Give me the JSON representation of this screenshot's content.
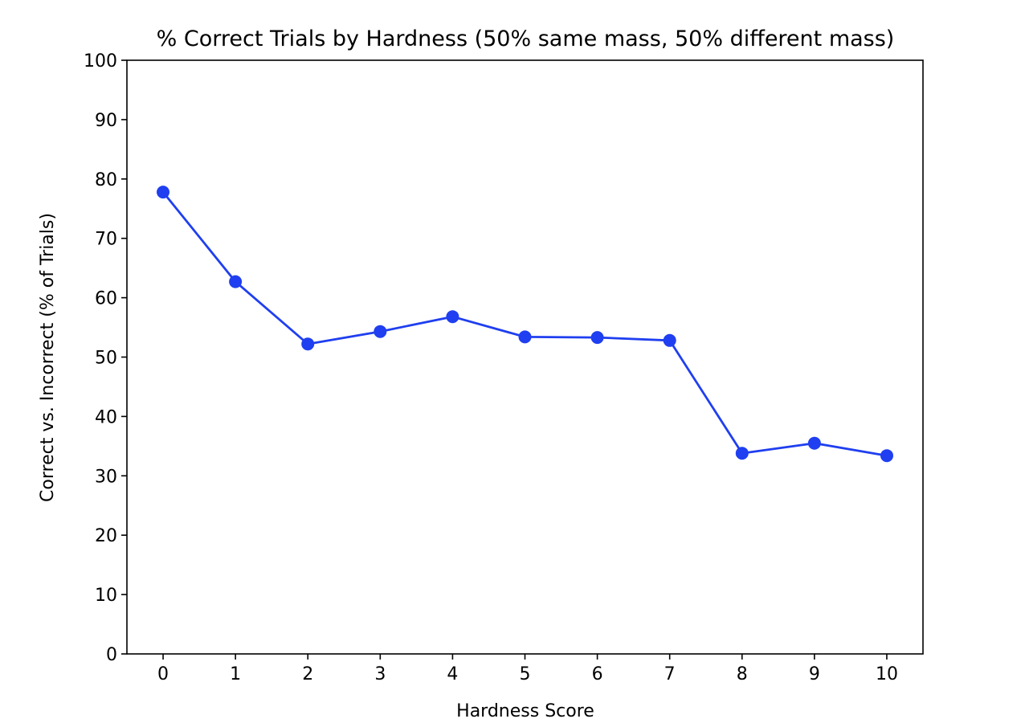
{
  "chart_data": {
    "type": "line",
    "title": "% Correct Trials by Hardness (50% same mass, 50% different mass)",
    "xlabel": "Hardness Score",
    "ylabel": "Correct vs. Incorrect (% of Trials)",
    "x": [
      0,
      1,
      2,
      3,
      4,
      5,
      6,
      7,
      8,
      9,
      10
    ],
    "series": [
      {
        "values": [
          77.8,
          62.7,
          52.2,
          54.3,
          56.8,
          53.4,
          53.3,
          52.8,
          33.8,
          35.5,
          33.4
        ],
        "color": "#1f3ff0",
        "marker": "circle"
      }
    ],
    "xlim": [
      -0.5,
      10.5
    ],
    "ylim": [
      0,
      100
    ],
    "x_ticks": [
      "0",
      "1",
      "2",
      "3",
      "4",
      "5",
      "6",
      "7",
      "8",
      "9",
      "10"
    ],
    "y_ticks": [
      "0",
      "10",
      "20",
      "30",
      "40",
      "50",
      "60",
      "70",
      "80",
      "90",
      "100"
    ],
    "grid": false,
    "legend": "none"
  }
}
